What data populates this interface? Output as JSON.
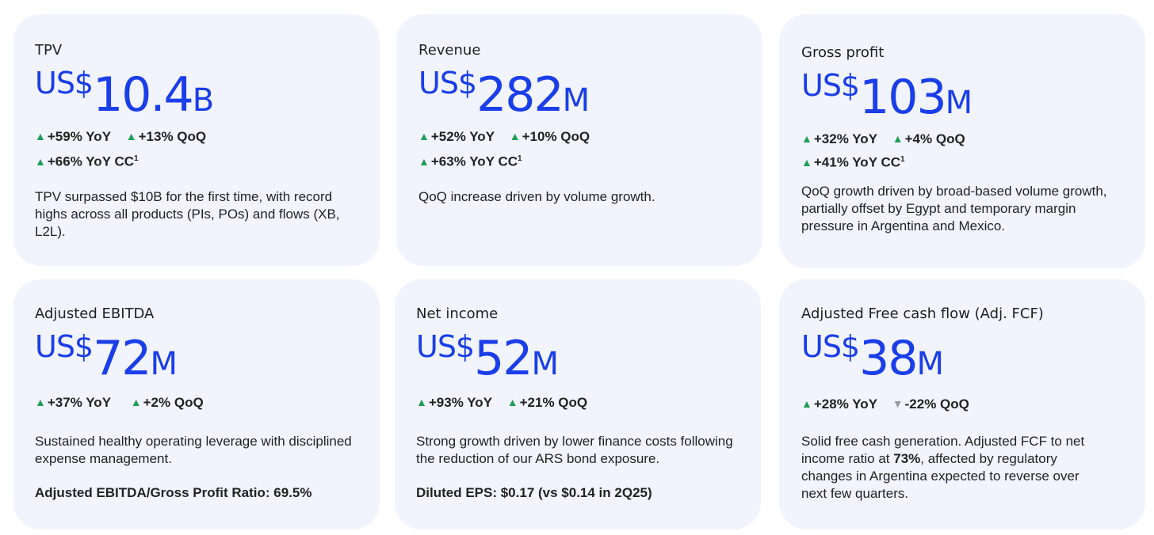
{
  "cards": [
    {
      "title": "TPV",
      "value": {
        "currency": "US$",
        "number": "10.4",
        "unit": "B"
      },
      "metrics": {
        "yoy": "+59% YoY",
        "qoq": "+13% QoQ",
        "cc": "+66% YoY CC",
        "cc_sup": "1"
      },
      "description": "TPV surpassed $10B for the first time, with record highs across all products (PIs, POs) and flows (XB, L2L)."
    },
    {
      "title": "Revenue",
      "value": {
        "currency": "US$",
        "number": "282",
        "unit": "M"
      },
      "metrics": {
        "yoy": "+52% YoY",
        "qoq": "+10% QoQ",
        "cc": "+63% YoY CC",
        "cc_sup": "1"
      },
      "description": "QoQ increase driven by volume growth."
    },
    {
      "title": "Gross profit",
      "value": {
        "currency": "US$",
        "number": "103",
        "unit": "M"
      },
      "metrics": {
        "yoy": "+32% YoY",
        "qoq": "+4% QoQ",
        "cc": "+41% YoY CC",
        "cc_sup": "1"
      },
      "description": "QoQ growth driven by broad-based volume growth, partially offset by Egypt and temporary margin pressure in Argentina and Mexico."
    },
    {
      "title": "Adjusted EBITDA",
      "value": {
        "currency": "US$",
        "number": "72",
        "unit": "M"
      },
      "metrics": {
        "yoy": "+37% YoY",
        "qoq": "+2% QoQ"
      },
      "description": "Sustained healthy operating leverage with disciplined expense management.",
      "note": "Adjusted EBITDA/Gross Profit Ratio: 69.5%"
    },
    {
      "title": "Net income",
      "value": {
        "currency": "US$",
        "number": "52",
        "unit": "M"
      },
      "metrics": {
        "yoy": "+93% YoY",
        "qoq": "+21% QoQ"
      },
      "description": "Strong growth driven by lower finance costs following the reduction of our ARS bond exposure.",
      "note": "Diluted EPS: $0.17 (vs $0.14 in 2Q25)"
    },
    {
      "title": "Adjusted Free cash flow (Adj. FCF)",
      "value": {
        "currency": "US$",
        "number": "38",
        "unit": "M"
      },
      "metrics": {
        "yoy": "+28% YoY",
        "qoq": "-22% QoQ"
      },
      "description_parts": {
        "before": "Solid free cash generation. Adjusted FCF to net income ratio at ",
        "bold": "73%",
        "after": ", affected by regulatory changes in Argentina expected to reverse over next few quarters."
      }
    }
  ],
  "colors": {
    "card_bg": "#f2f4fd",
    "value_blue": "#1a3ee8",
    "up_arrow": "#1f9d55",
    "down_arrow": "#9a9a9a"
  },
  "icons": {
    "up": "triangle-up-icon",
    "down": "triangle-down-icon"
  }
}
